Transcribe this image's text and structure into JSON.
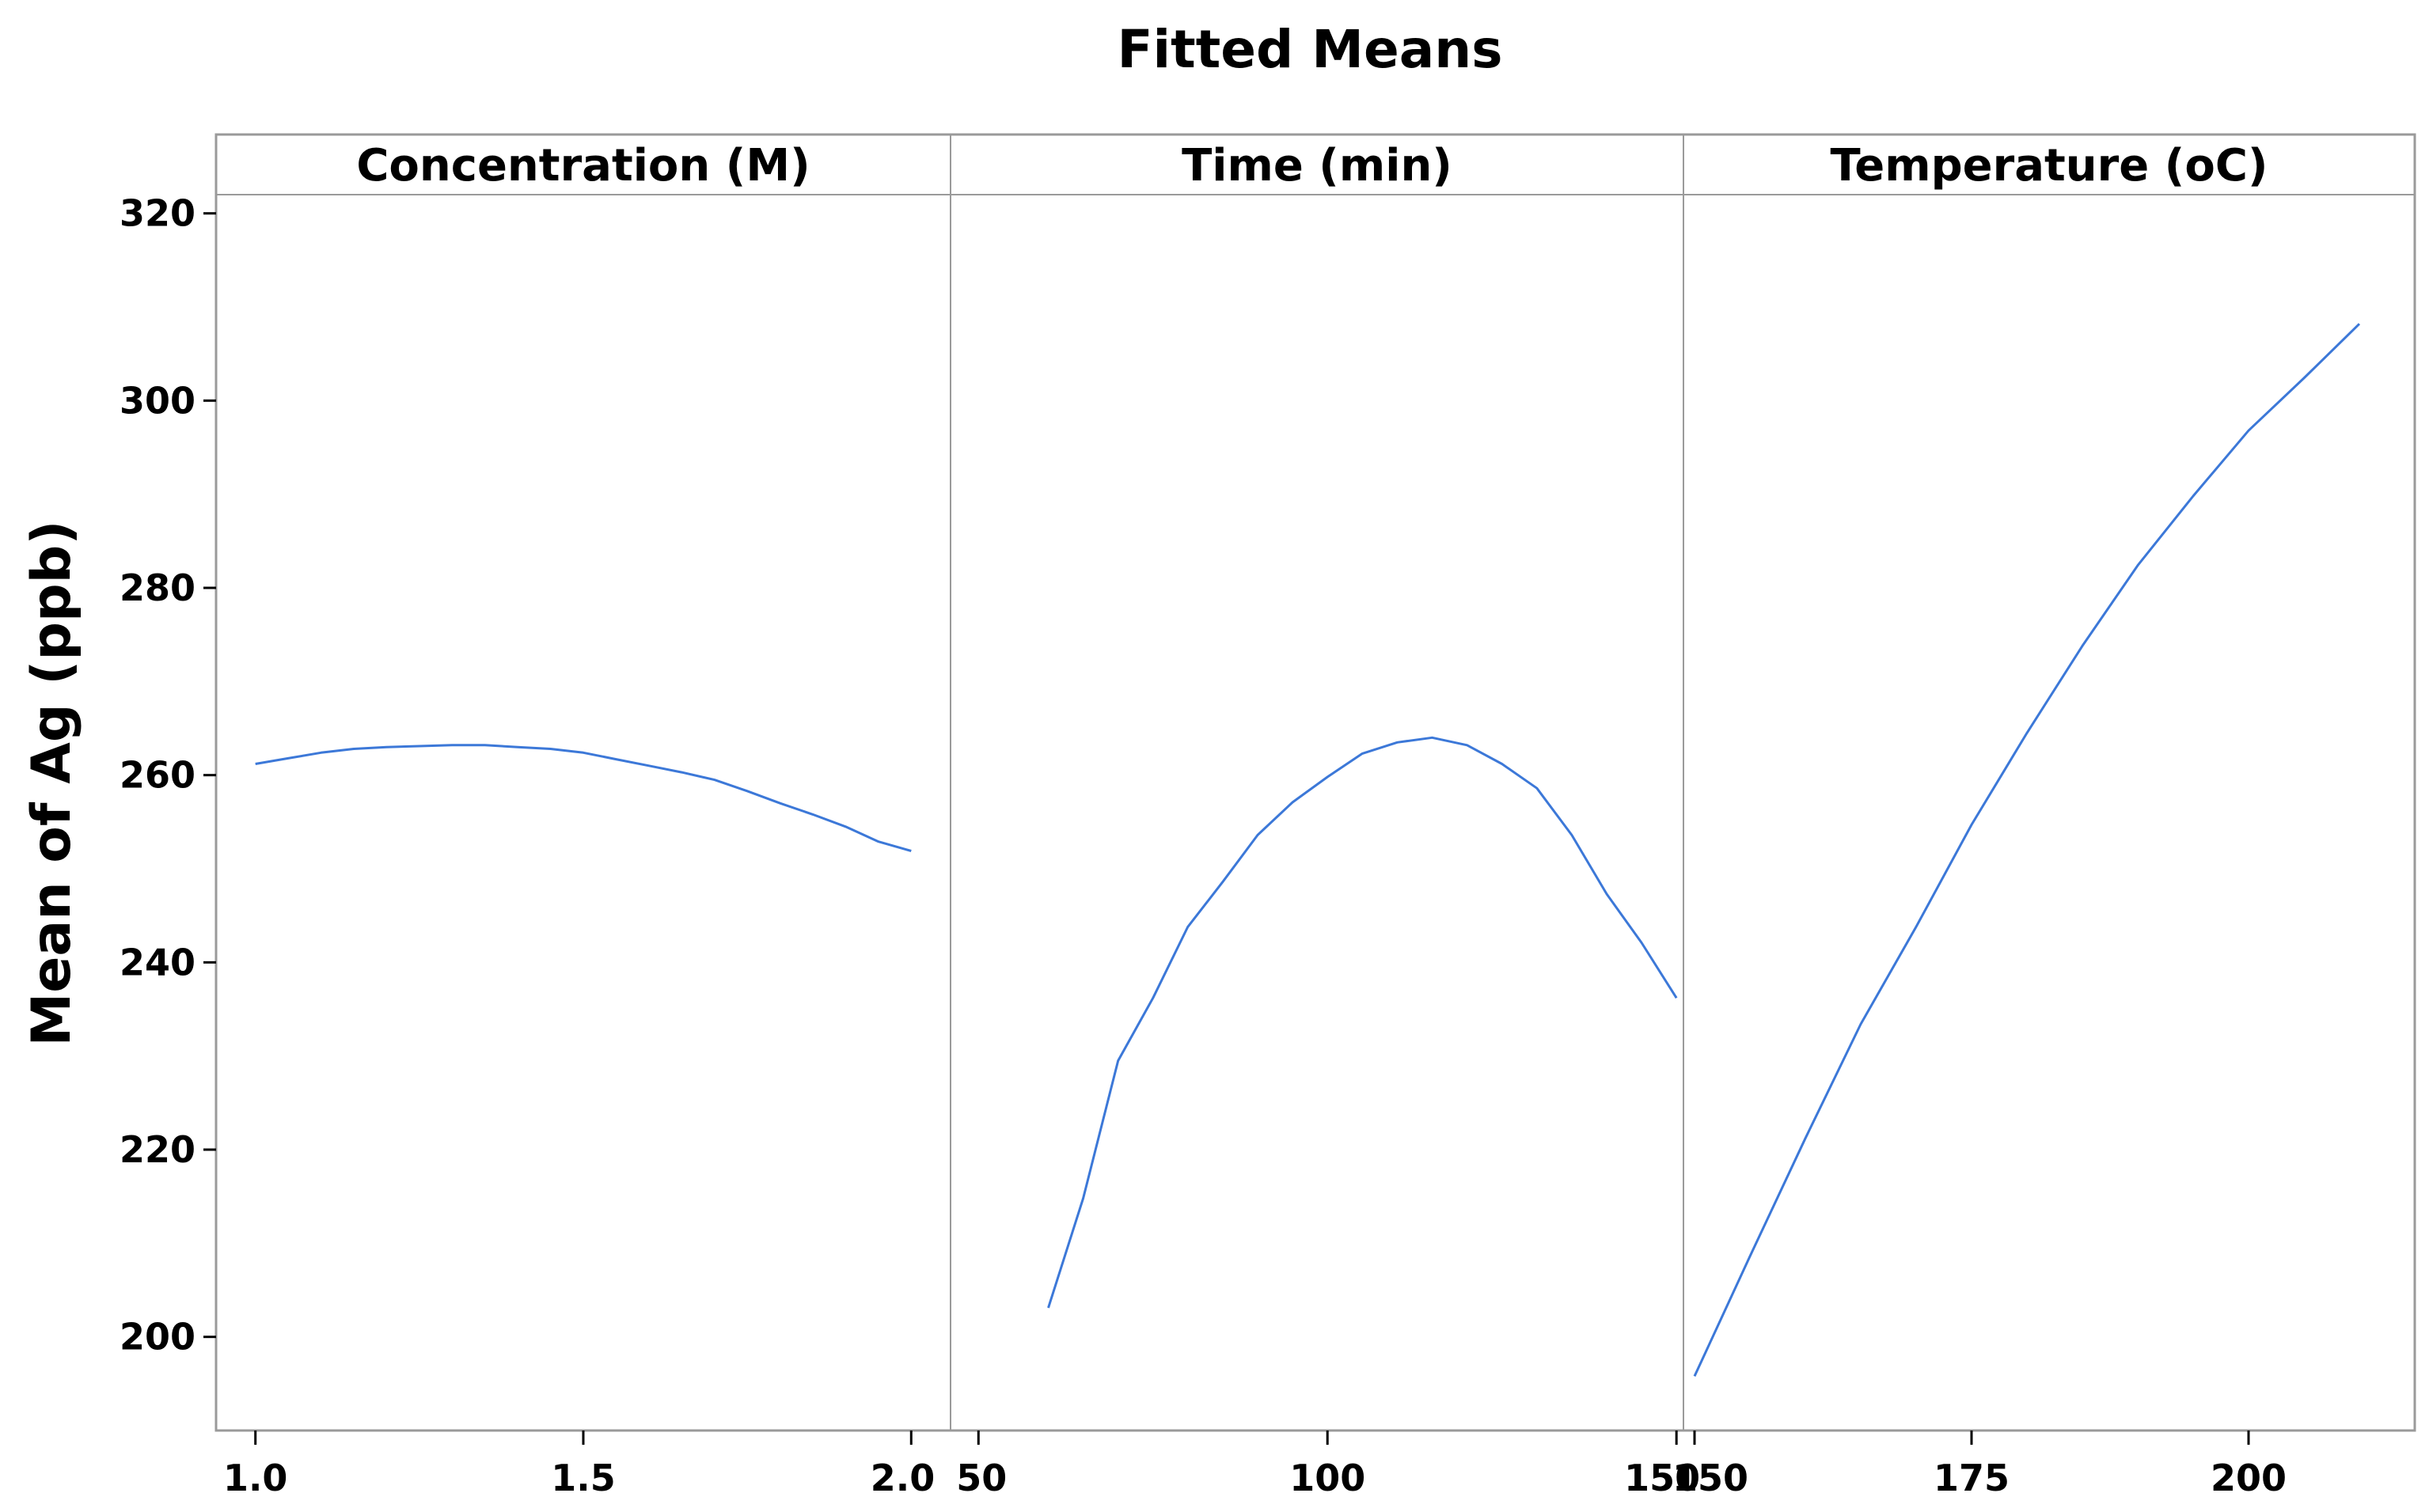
{
  "chart_data": {
    "type": "line",
    "title": "Fitted Means",
    "ylabel": "Mean of Ag (ppb)",
    "ylim": [
      190,
      322
    ],
    "yticks": [
      200,
      220,
      240,
      260,
      280,
      300,
      320
    ],
    "ytick_labels": [
      "200",
      "220",
      "240",
      "260",
      "280",
      "300",
      "320"
    ],
    "line_color": "#3c78d8",
    "grid": false,
    "panels": [
      {
        "title": "Concentration (M)",
        "xlim": [
          0.94,
          2.06
        ],
        "xticks": [
          1.0,
          1.5,
          2.0
        ],
        "xtick_labels": [
          "1.0",
          "1.5",
          "2.0"
        ],
        "series": [
          {
            "x": [
              1.0,
              1.05,
              1.1,
              1.15,
              1.2,
              1.25,
              1.3,
              1.35,
              1.4,
              1.45,
              1.5,
              1.55,
              1.6,
              1.65,
              1.7,
              1.75,
              1.8,
              1.85,
              1.9,
              1.95,
              2.0
            ],
            "y": [
              261.2,
              261.8,
              262.4,
              262.8,
              263.0,
              263.1,
              263.2,
              263.2,
              263.0,
              262.8,
              262.4,
              261.7,
              261.0,
              260.3,
              259.5,
              258.3,
              257.0,
              255.8,
              254.5,
              252.9,
              251.9
            ]
          }
        ]
      },
      {
        "title": "Time (min)",
        "xlim": [
          46,
          151
        ],
        "xticks": [
          50,
          100,
          150
        ],
        "xtick_labels": [
          "50",
          "100",
          "150"
        ],
        "series": [
          {
            "x": [
              60,
              65,
              70,
              75,
              80,
              85,
              90,
              95,
              100,
              105,
              110,
              115,
              120,
              125,
              130,
              135,
              140,
              145,
              150
            ],
            "y": [
              203.1,
              214.8,
              229.5,
              236.2,
              243.8,
              248.6,
              253.6,
              257.1,
              259.8,
              262.3,
              263.5,
              264.0,
              263.2,
              261.2,
              258.6,
              253.6,
              247.3,
              242.1,
              236.2
            ]
          }
        ]
      },
      {
        "title": "Temperature (oC)",
        "xlim": [
          149,
          215
        ],
        "xticks": [
          150,
          175,
          200
        ],
        "xtick_labels": [
          "150",
          "175",
          "200"
        ],
        "series": [
          {
            "x": [
              150,
              155,
              160,
              165,
              170,
              175,
              180,
              185,
              190,
              195,
              200,
              205,
              210
            ],
            "y": [
              195.8,
              208.6,
              221.2,
              233.4,
              243.8,
              254.7,
              264.5,
              273.8,
              282.4,
              289.8,
              296.8,
              302.4,
              308.2
            ]
          }
        ]
      }
    ]
  }
}
